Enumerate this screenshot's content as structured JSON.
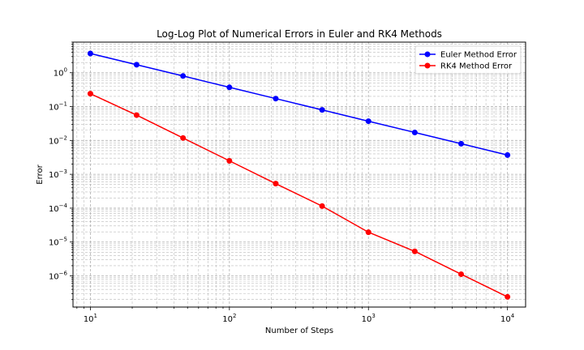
{
  "chart_data": {
    "type": "line",
    "title": "Log-Log Plot of Numerical Errors in Euler and RK4 Methods",
    "xlabel": "Number of Steps",
    "ylabel": "Error",
    "xscale": "log",
    "yscale": "log",
    "xlim": [
      7.5,
      13500
    ],
    "ylim": [
      1.2e-07,
      8
    ],
    "grid": true,
    "legend_position": "top-right",
    "x": [
      10,
      21.5,
      46.4,
      100,
      215.4,
      464.2,
      1000,
      2154.4,
      4641.6,
      10000
    ],
    "series": [
      {
        "name": "Euler Method Error",
        "color": "#0000ff",
        "values": [
          3.7,
          1.72,
          0.8,
          0.37,
          0.172,
          0.08,
          0.037,
          0.0172,
          0.008,
          0.0037
        ]
      },
      {
        "name": "RK4 Method Error",
        "color": "#ff0000",
        "values": [
          0.24,
          0.056,
          0.0118,
          0.0025,
          0.00053,
          0.000115,
          1.95e-05,
          5.3e-06,
          1.12e-06,
          2.4e-07
        ]
      }
    ],
    "x_ticks": [
      {
        "base": "10",
        "exp": "1",
        "value": 10
      },
      {
        "base": "10",
        "exp": "2",
        "value": 100
      },
      {
        "base": "10",
        "exp": "3",
        "value": 1000
      },
      {
        "base": "10",
        "exp": "4",
        "value": 10000
      }
    ],
    "y_ticks": [
      {
        "base": "10",
        "exp": "−6",
        "value": 1e-06
      },
      {
        "base": "10",
        "exp": "−5",
        "value": 1e-05
      },
      {
        "base": "10",
        "exp": "−4",
        "value": 0.0001
      },
      {
        "base": "10",
        "exp": "−3",
        "value": 0.001
      },
      {
        "base": "10",
        "exp": "−2",
        "value": 0.01
      },
      {
        "base": "10",
        "exp": "−1",
        "value": 0.1
      },
      {
        "base": "10",
        "exp": "0",
        "value": 1
      }
    ]
  }
}
